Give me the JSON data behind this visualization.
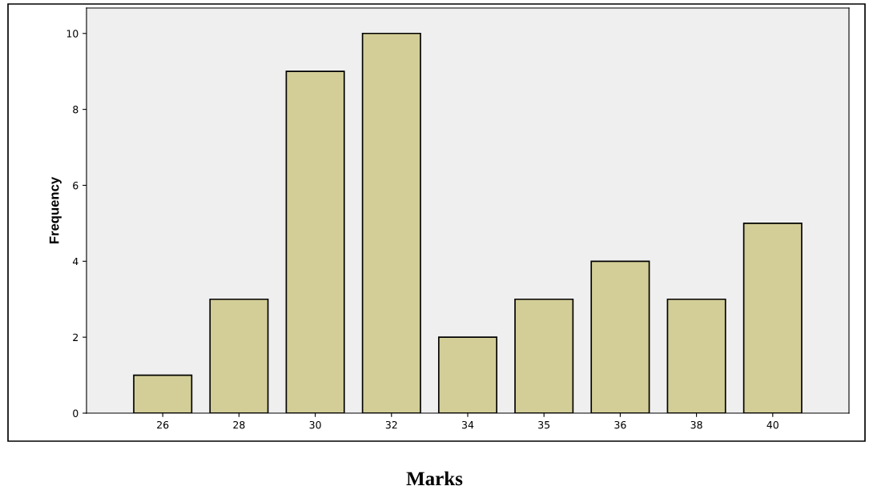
{
  "chart_data": {
    "type": "bar",
    "xlabel": "Marks",
    "ylabel": "Frequency",
    "categories": [
      "26",
      "28",
      "30",
      "32",
      "34",
      "35",
      "36",
      "38",
      "40"
    ],
    "values": [
      1,
      3,
      9,
      10,
      2,
      3,
      4,
      3,
      5
    ],
    "color": "#d3ce97",
    "ylim": [
      0,
      10.67
    ],
    "yticks": [
      0,
      2,
      4,
      6,
      8,
      10
    ],
    "grid": false
  }
}
